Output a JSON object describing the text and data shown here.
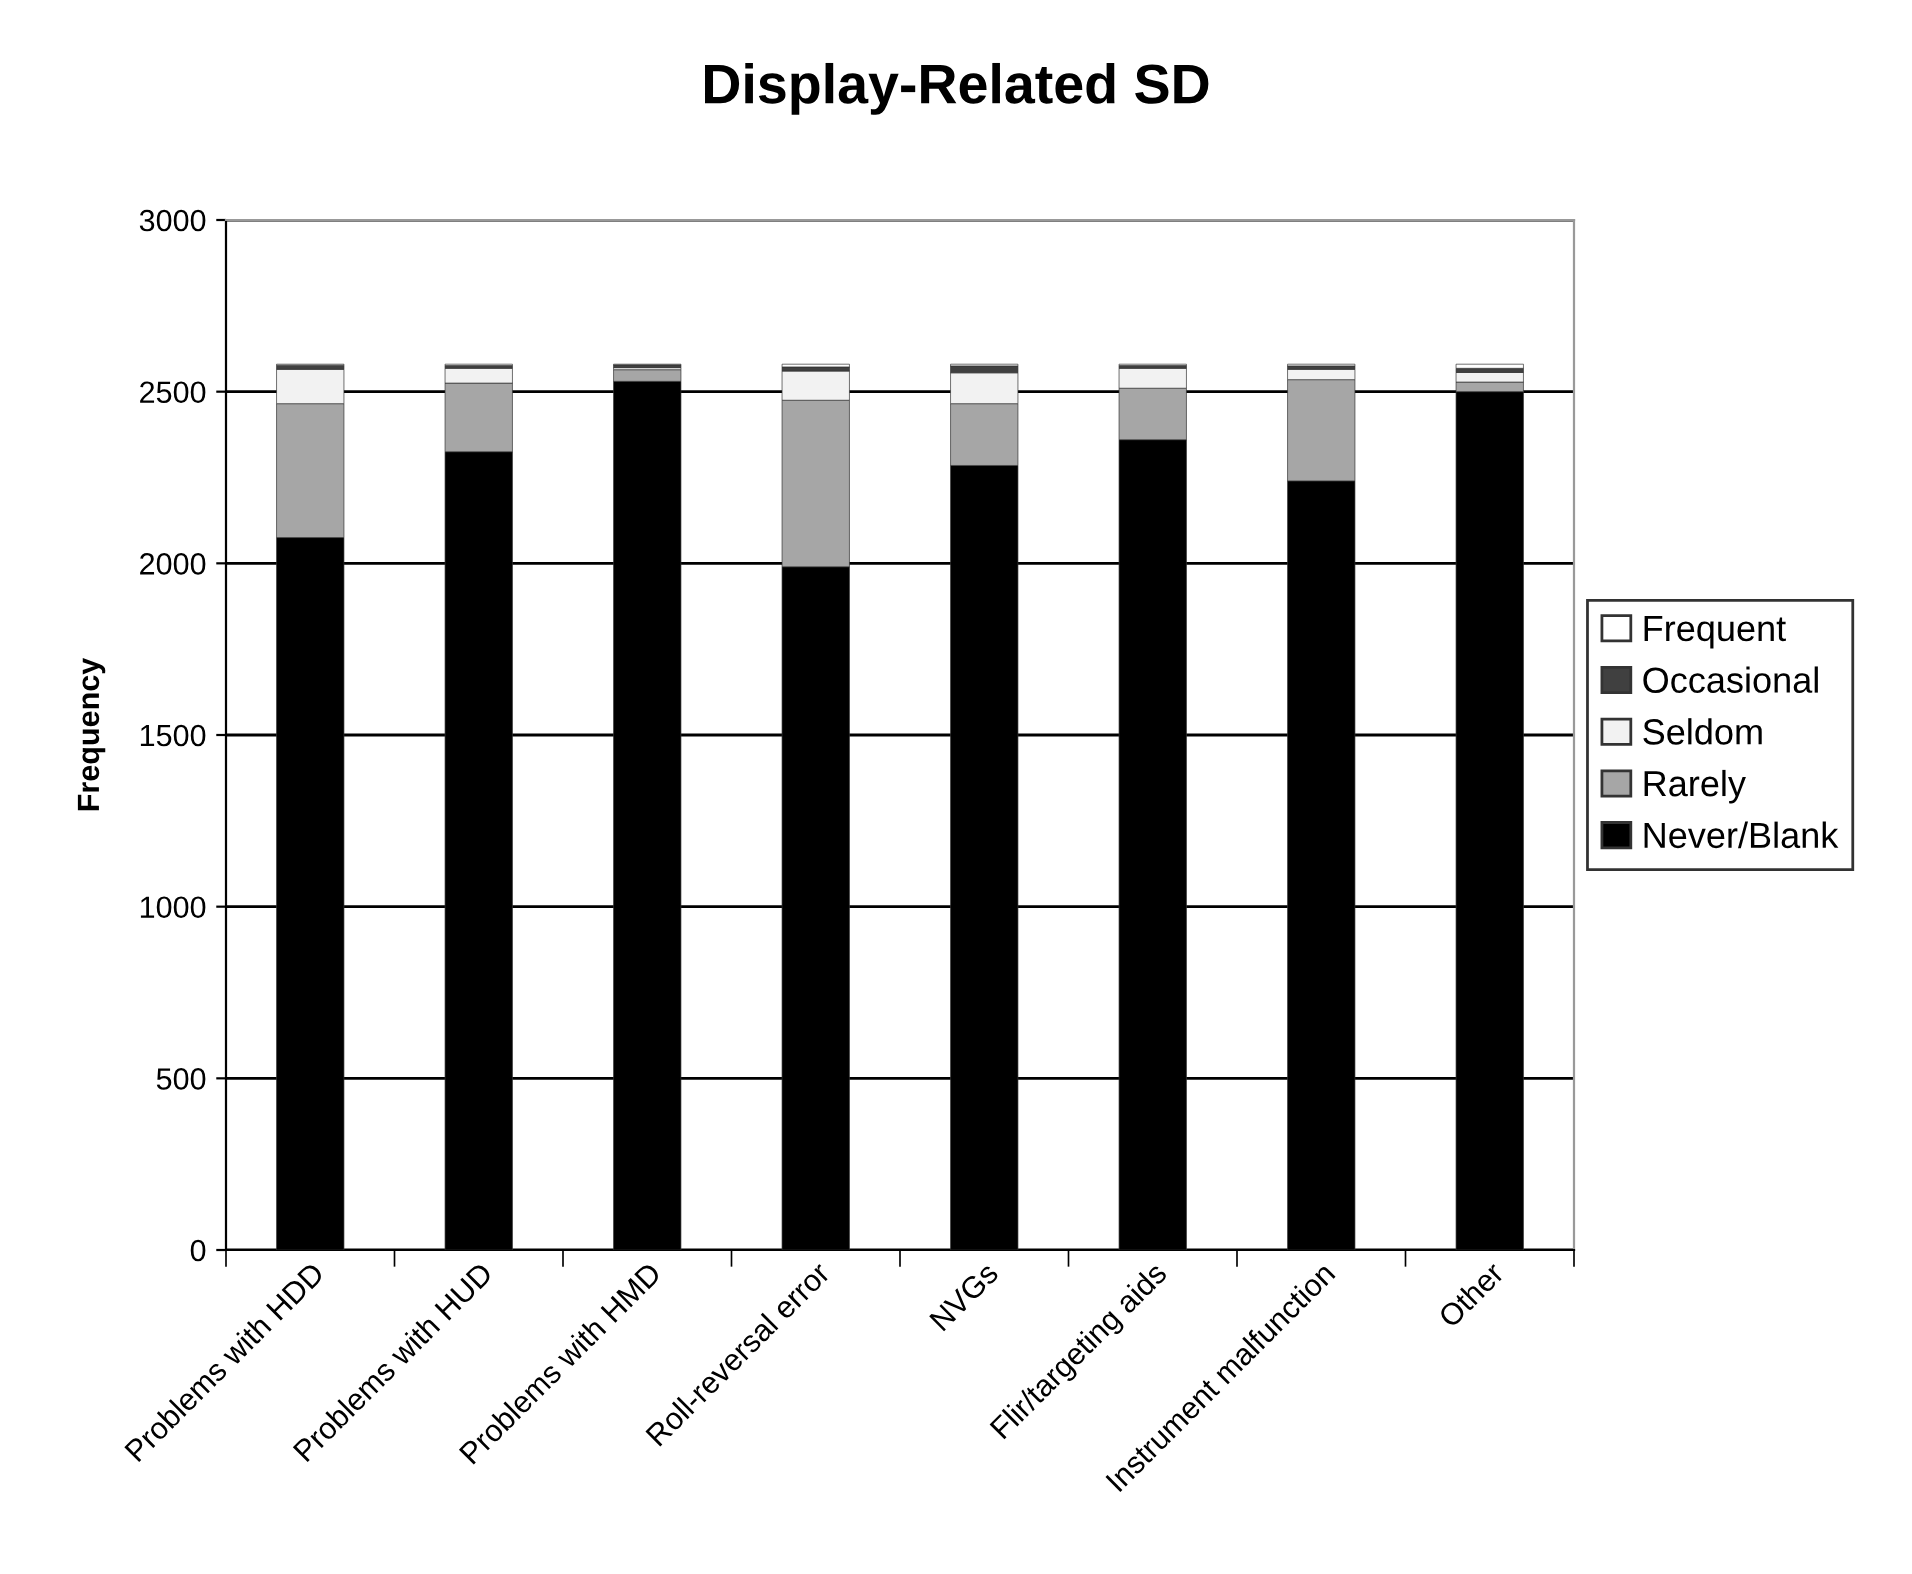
{
  "chart_data": {
    "type": "bar",
    "title": "Display-Related SD",
    "ylabel": "Frequency",
    "stacked": true,
    "categories": [
      "Problems with HDD",
      "Problems with HUD",
      "Problems with HMD",
      "Roll-reversal error",
      "NVGs",
      "Flir/targeting aids",
      "Instrument malfunction",
      "Other"
    ],
    "series": [
      {
        "name": "Never/Blank",
        "color": "#000000",
        "values": [
          2075,
          2325,
          2530,
          1990,
          2285,
          2360,
          2240,
          2500
        ]
      },
      {
        "name": "Rarely",
        "color": "#a6a6a6",
        "values": [
          390,
          200,
          34,
          485,
          180,
          150,
          295,
          28
        ]
      },
      {
        "name": "Seldom",
        "color": "#f2f2f2",
        "values": [
          100,
          43,
          6,
          85,
          90,
          58,
          30,
          28
        ]
      },
      {
        "name": "Occasional",
        "color": "#404040",
        "values": [
          12,
          8,
          8,
          12,
          20,
          8,
          10,
          12
        ]
      },
      {
        "name": "Frequent",
        "color": "#ffffff",
        "values": [
          3,
          4,
          2,
          8,
          5,
          4,
          5,
          12
        ]
      }
    ],
    "ylim": [
      0,
      3000
    ],
    "yticks": [
      0,
      500,
      1000,
      1500,
      2000,
      2500,
      3000
    ],
    "grid": "y",
    "legend": "right"
  }
}
